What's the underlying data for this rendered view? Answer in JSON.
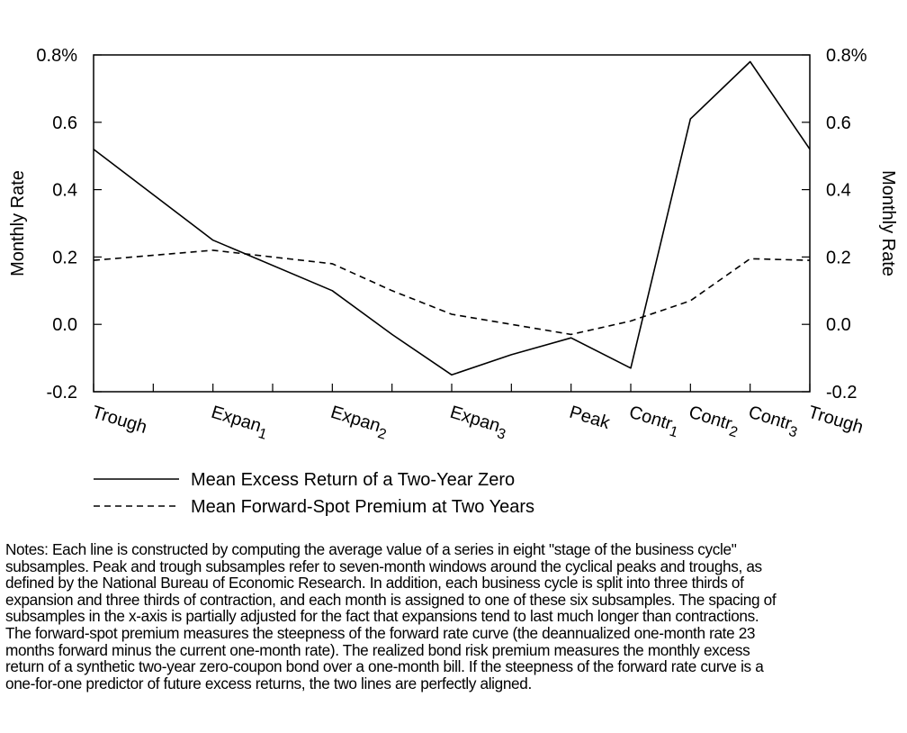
{
  "chart_data": {
    "type": "line",
    "categories": [
      "Trough",
      "Expan1",
      "Expan2",
      "Expan3",
      "Peak",
      "Contr1",
      "Contr2",
      "Contr3",
      "Trough"
    ],
    "category_labels": [
      {
        "base": "Trough",
        "sub": ""
      },
      {
        "base": "Expan",
        "sub": "1"
      },
      {
        "base": "Expan",
        "sub": "2"
      },
      {
        "base": "Expan",
        "sub": "3"
      },
      {
        "base": "Peak",
        "sub": ""
      },
      {
        "base": "Contr",
        "sub": "1"
      },
      {
        "base": "Contr",
        "sub": "2"
      },
      {
        "base": "Contr",
        "sub": "3"
      },
      {
        "base": "Trough",
        "sub": ""
      }
    ],
    "x": [
      0,
      2,
      4,
      6,
      8,
      9,
      10,
      11,
      12
    ],
    "xlim": [
      0,
      12
    ],
    "minor_ticks": [
      1,
      3,
      5,
      7
    ],
    "series": [
      {
        "name": "Mean Excess Return of a Two-Year Zero",
        "style": "solid",
        "x": [
          0,
          2,
          4,
          5,
          6,
          7,
          8,
          9,
          10,
          11,
          12
        ],
        "values": [
          0.52,
          0.25,
          0.1,
          -0.03,
          -0.15,
          -0.09,
          -0.04,
          -0.13,
          0.61,
          0.78,
          0.52
        ]
      },
      {
        "name": "Mean Forward-Spot Premium at Two Years",
        "style": "dashed",
        "x": [
          0,
          2,
          4,
          5,
          6,
          8,
          9,
          10,
          11,
          12
        ],
        "values": [
          0.19,
          0.22,
          0.18,
          0.1,
          0.03,
          -0.03,
          0.01,
          0.07,
          0.195,
          0.19
        ]
      }
    ],
    "ylim": [
      -0.2,
      0.8
    ],
    "yticks": [
      -0.2,
      0.0,
      0.2,
      0.4,
      0.6,
      0.8
    ],
    "ytick_labels": [
      "-0.2",
      "0.0",
      "0.2",
      "0.4",
      "0.6",
      "0.8%"
    ],
    "ylabel_left": "Monthly Rate",
    "ylabel_right": "Monthly Rate",
    "xlabel": "",
    "title": "",
    "grid": false,
    "legend_position": "bottom-left",
    "colors": {
      "line": "#000000",
      "background": "#ffffff"
    }
  },
  "notes": [
    "Notes: Each line is constructed by computing the average value of a series in eight \"stage of the business cycle\"",
    "subsamples. Peak and trough subsamples refer to seven-month windows around the cyclical peaks and troughs, as",
    "defined by the National Bureau of Economic Research. In addition, each business cycle is split into three thirds of",
    "expansion and three thirds of contraction, and each month is assigned to one of these six subsamples. The spacing of",
    "subsamples in the x-axis is partially adjusted for the fact that expansions tend to last much longer than contractions.",
    "The forward-spot premium measures the steepness of the forward rate curve (the deannualized one-month rate 23",
    "months forward minus the current one-month rate). The realized bond risk premium measures the monthly excess",
    "return of a synthetic two-year zero-coupon bond over a one-month bill. If the steepness of the forward rate curve is a",
    "one-for-one predictor of future excess returns, the two lines are perfectly aligned."
  ]
}
